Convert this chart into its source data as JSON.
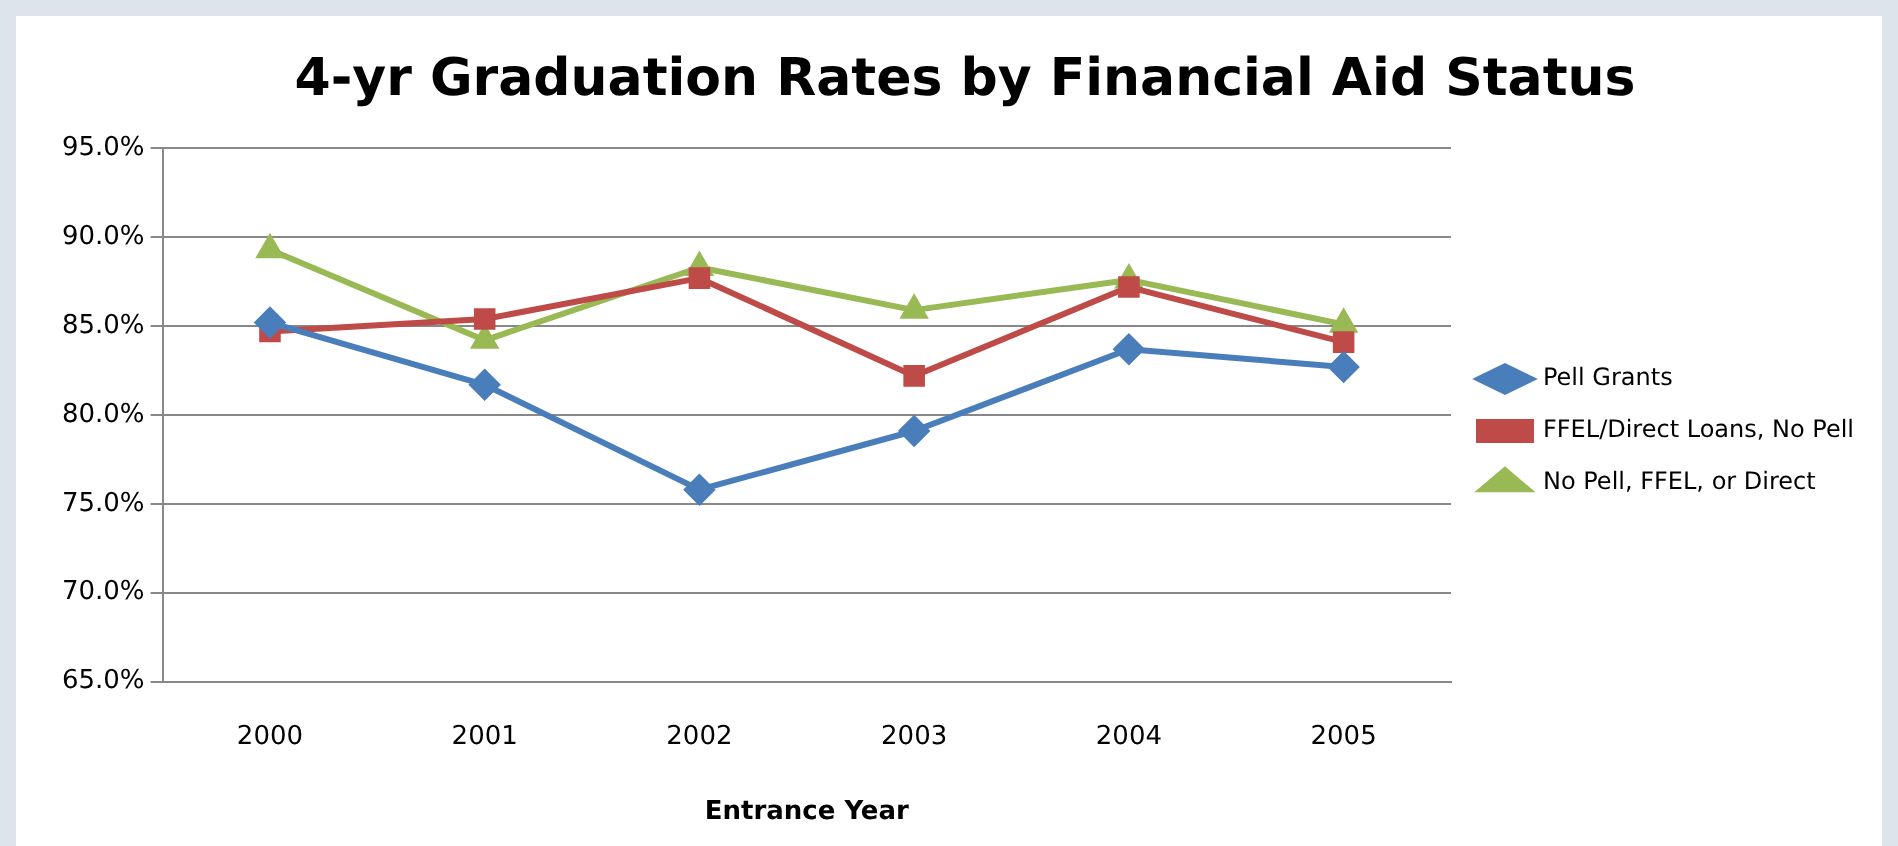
{
  "chart_data": {
    "type": "line",
    "title": "4-yr Graduation Rates by Financial Aid Status",
    "xlabel": "Entrance Year",
    "categories": [
      "2000",
      "2001",
      "2002",
      "2003",
      "2004",
      "2005"
    ],
    "series": [
      {
        "name": "Pell Grants",
        "color": "#4a7ebb",
        "marker": "diamond",
        "values": [
          85.2,
          81.7,
          75.8,
          79.1,
          83.7,
          82.7
        ]
      },
      {
        "name": "FFEL/Direct Loans, No Pell",
        "color": "#be4b48",
        "marker": "square",
        "values": [
          84.7,
          85.4,
          87.7,
          82.2,
          87.2,
          84.1
        ]
      },
      {
        "name": "No Pell, FFEL, or Direct",
        "color": "#98b954",
        "marker": "triangle",
        "values": [
          89.3,
          84.2,
          88.3,
          85.9,
          87.6,
          85.1
        ]
      }
    ],
    "ylim": [
      65,
      95
    ],
    "yticks": [
      {
        "value": 65,
        "label": "65.0%"
      },
      {
        "value": 70,
        "label": "70.0%"
      },
      {
        "value": 75,
        "label": "75.0%"
      },
      {
        "value": 80,
        "label": "80.0%"
      },
      {
        "value": 85,
        "label": "85.0%"
      },
      {
        "value": 90,
        "label": "90.0%"
      },
      {
        "value": 95,
        "label": "95.0%"
      }
    ],
    "grid": "y",
    "legend": "right"
  }
}
